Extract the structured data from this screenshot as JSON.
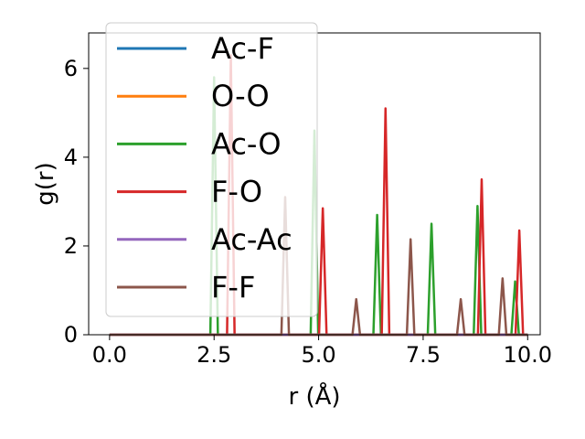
{
  "chart_data": {
    "type": "line",
    "xlabel": "r (Å)",
    "ylabel": "g(r)",
    "xlim": [
      -0.5,
      10.3
    ],
    "ylim": [
      0,
      6.8
    ],
    "xticks": [
      "0.0",
      "2.5",
      "5.0",
      "7.5",
      "10.0"
    ],
    "yticks": [
      "0",
      "2",
      "4",
      "6"
    ],
    "legend": "upper-left",
    "grid": false,
    "series": [
      {
        "name": "Ac-F",
        "color": "#1f77b4",
        "peaks": []
      },
      {
        "name": "O-O",
        "color": "#ff7f0e",
        "peaks": []
      },
      {
        "name": "Ac-O",
        "color": "#2ca02c",
        "peaks": [
          {
            "r": 2.5,
            "g": 5.8
          },
          {
            "r": 4.9,
            "g": 4.6
          },
          {
            "r": 6.4,
            "g": 2.7
          },
          {
            "r": 7.7,
            "g": 2.5
          },
          {
            "r": 8.8,
            "g": 2.9
          },
          {
            "r": 9.7,
            "g": 1.2
          }
        ]
      },
      {
        "name": "F-O",
        "color": "#d62728",
        "peaks": [
          {
            "r": 2.9,
            "g": 6.3
          },
          {
            "r": 5.1,
            "g": 2.85
          },
          {
            "r": 6.6,
            "g": 5.1
          },
          {
            "r": 8.9,
            "g": 3.5
          },
          {
            "r": 9.8,
            "g": 2.35
          }
        ]
      },
      {
        "name": "Ac-Ac",
        "color": "#9467bd",
        "peaks": []
      },
      {
        "name": "F-F",
        "color": "#8c564b",
        "peaks": [
          {
            "r": 4.2,
            "g": 3.1
          },
          {
            "r": 5.9,
            "g": 0.8
          },
          {
            "r": 7.2,
            "g": 2.15
          },
          {
            "r": 8.4,
            "g": 0.8
          },
          {
            "r": 9.4,
            "g": 1.27
          }
        ]
      }
    ]
  }
}
